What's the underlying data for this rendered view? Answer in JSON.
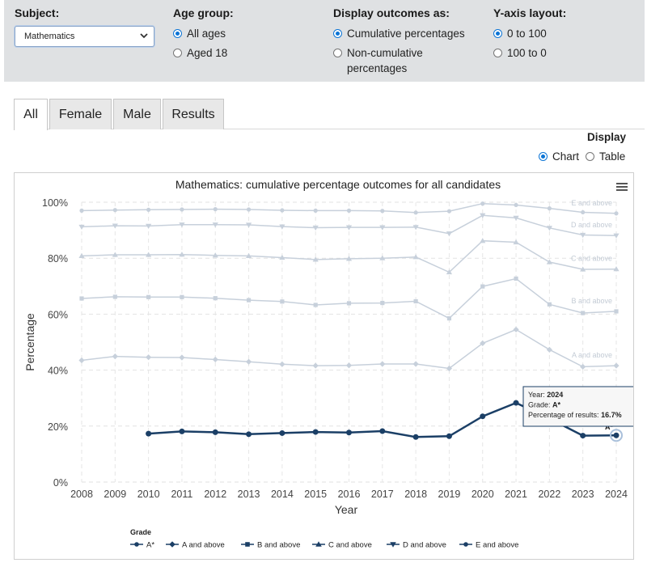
{
  "filters": {
    "subject": {
      "label": "Subject:",
      "value": "Mathematics"
    },
    "age_group": {
      "label": "Age group:",
      "options": [
        {
          "label": "All ages",
          "selected": true
        },
        {
          "label": "Aged 18",
          "selected": false
        }
      ]
    },
    "display_outcomes": {
      "label": "Display outcomes as:",
      "options": [
        {
          "label": "Cumulative percentages",
          "selected": true
        },
        {
          "label": "Non-cumulative percentages",
          "selected": false
        }
      ]
    },
    "y_axis_layout": {
      "label": "Y-axis layout:",
      "options": [
        {
          "label": "0 to 100",
          "selected": true
        },
        {
          "label": "100 to 0",
          "selected": false
        }
      ]
    }
  },
  "tabs": [
    {
      "label": "All",
      "active": true
    },
    {
      "label": "Female",
      "active": false
    },
    {
      "label": "Male",
      "active": false
    },
    {
      "label": "Results",
      "active": false
    }
  ],
  "display": {
    "label": "Display",
    "options": [
      {
        "label": "Chart",
        "selected": true
      },
      {
        "label": "Table",
        "selected": false
      }
    ]
  },
  "icons": {
    "menu": "hamburger-menu-icon",
    "dropdown": "chevron-down-icon"
  },
  "colors": {
    "highlight": "#1b3f66",
    "faded": "#c7d0db",
    "accent": "#0b74d5"
  },
  "chart_data": {
    "type": "line",
    "title": "Mathematics: cumulative percentage outcomes for all candidates",
    "xlabel": "Year",
    "ylabel": "Percentage",
    "ylim": [
      0,
      100
    ],
    "yticks": [
      "0%",
      "20%",
      "40%",
      "60%",
      "80%",
      "100%"
    ],
    "x": [
      2008,
      2009,
      2010,
      2011,
      2012,
      2013,
      2014,
      2015,
      2016,
      2017,
      2018,
      2019,
      2020,
      2021,
      2022,
      2023,
      2024
    ],
    "grid": true,
    "legend_title": "Grade",
    "legend_position": "bottom",
    "series": [
      {
        "name": "A*",
        "label": "A*",
        "highlighted": true,
        "values": [
          null,
          null,
          17.3,
          18.1,
          17.8,
          17.1,
          17.5,
          17.9,
          17.7,
          18.2,
          16.1,
          16.4,
          23.5,
          28.3,
          22.7,
          16.6,
          16.7
        ]
      },
      {
        "name": "A and above",
        "label": "A and above",
        "highlighted": false,
        "values": [
          43.5,
          44.9,
          44.6,
          44.5,
          43.8,
          43.0,
          42.1,
          41.6,
          41.7,
          42.2,
          42.2,
          40.6,
          49.6,
          54.5,
          47.3,
          41.2,
          41.6
        ]
      },
      {
        "name": "B and above",
        "label": "B and above",
        "highlighted": false,
        "values": [
          65.6,
          66.2,
          66.1,
          66.1,
          65.7,
          65.0,
          64.5,
          63.3,
          63.9,
          64.0,
          64.6,
          58.5,
          69.9,
          72.7,
          63.5,
          60.4,
          61.0
        ]
      },
      {
        "name": "C and above",
        "label": "C and above",
        "highlighted": false,
        "values": [
          80.8,
          81.2,
          81.2,
          81.3,
          81.0,
          80.8,
          80.2,
          79.5,
          79.8,
          80.0,
          80.4,
          75.0,
          86.2,
          85.7,
          78.6,
          76.0,
          76.1
        ]
      },
      {
        "name": "D and above",
        "label": "D and above",
        "highlighted": false,
        "values": [
          91.2,
          91.6,
          91.5,
          92.0,
          92.0,
          91.9,
          91.3,
          90.9,
          91.0,
          91.0,
          91.1,
          88.8,
          95.3,
          94.4,
          90.8,
          88.3,
          88.1
        ]
      },
      {
        "name": "E and above",
        "label": "E and above",
        "highlighted": false,
        "values": [
          97.0,
          97.2,
          97.3,
          97.4,
          97.5,
          97.4,
          97.1,
          97.0,
          97.0,
          96.9,
          96.3,
          96.8,
          99.5,
          99.0,
          97.8,
          96.4,
          96.0
        ]
      }
    ],
    "tooltip": {
      "year_label": "Year:",
      "year": "2024",
      "grade_label": "Grade:",
      "grade": "A*",
      "pct_label": "Percentage of results:",
      "pct": "16.7%"
    }
  }
}
